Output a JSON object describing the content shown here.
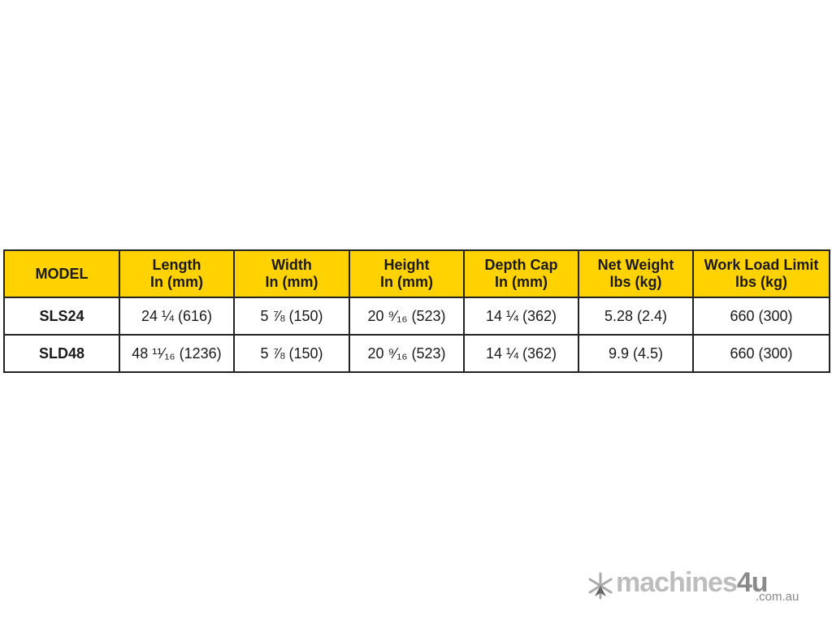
{
  "table": {
    "headers": [
      [
        "MODEL"
      ],
      [
        "Length",
        "In (mm)"
      ],
      [
        "Width",
        "In (mm)"
      ],
      [
        "Height",
        "In (mm)"
      ],
      [
        "Depth Cap",
        "In (mm)"
      ],
      [
        "Net Weight",
        "lbs (kg)"
      ],
      [
        "Work Load Limit",
        "lbs (kg)"
      ]
    ],
    "rows": [
      [
        "SLS24",
        "24 ¼ (616)",
        "5 ⅞ (150)",
        "20 ⁹⁄₁₆ (523)",
        "14 ¼ (362)",
        "5.28 (2.4)",
        "660 (300)"
      ],
      [
        "SLD48",
        "48 ¹¹⁄₁₆ (1236)",
        "5 ⅞ (150)",
        "20 ⁹⁄₁₆ (523)",
        "14 ¼ (362)",
        "9.9 (4.5)",
        "660 (300)"
      ]
    ],
    "header_color": "#ffd200"
  },
  "watermark": {
    "name": "machines",
    "num": "4u",
    "domain": ".com.au"
  }
}
